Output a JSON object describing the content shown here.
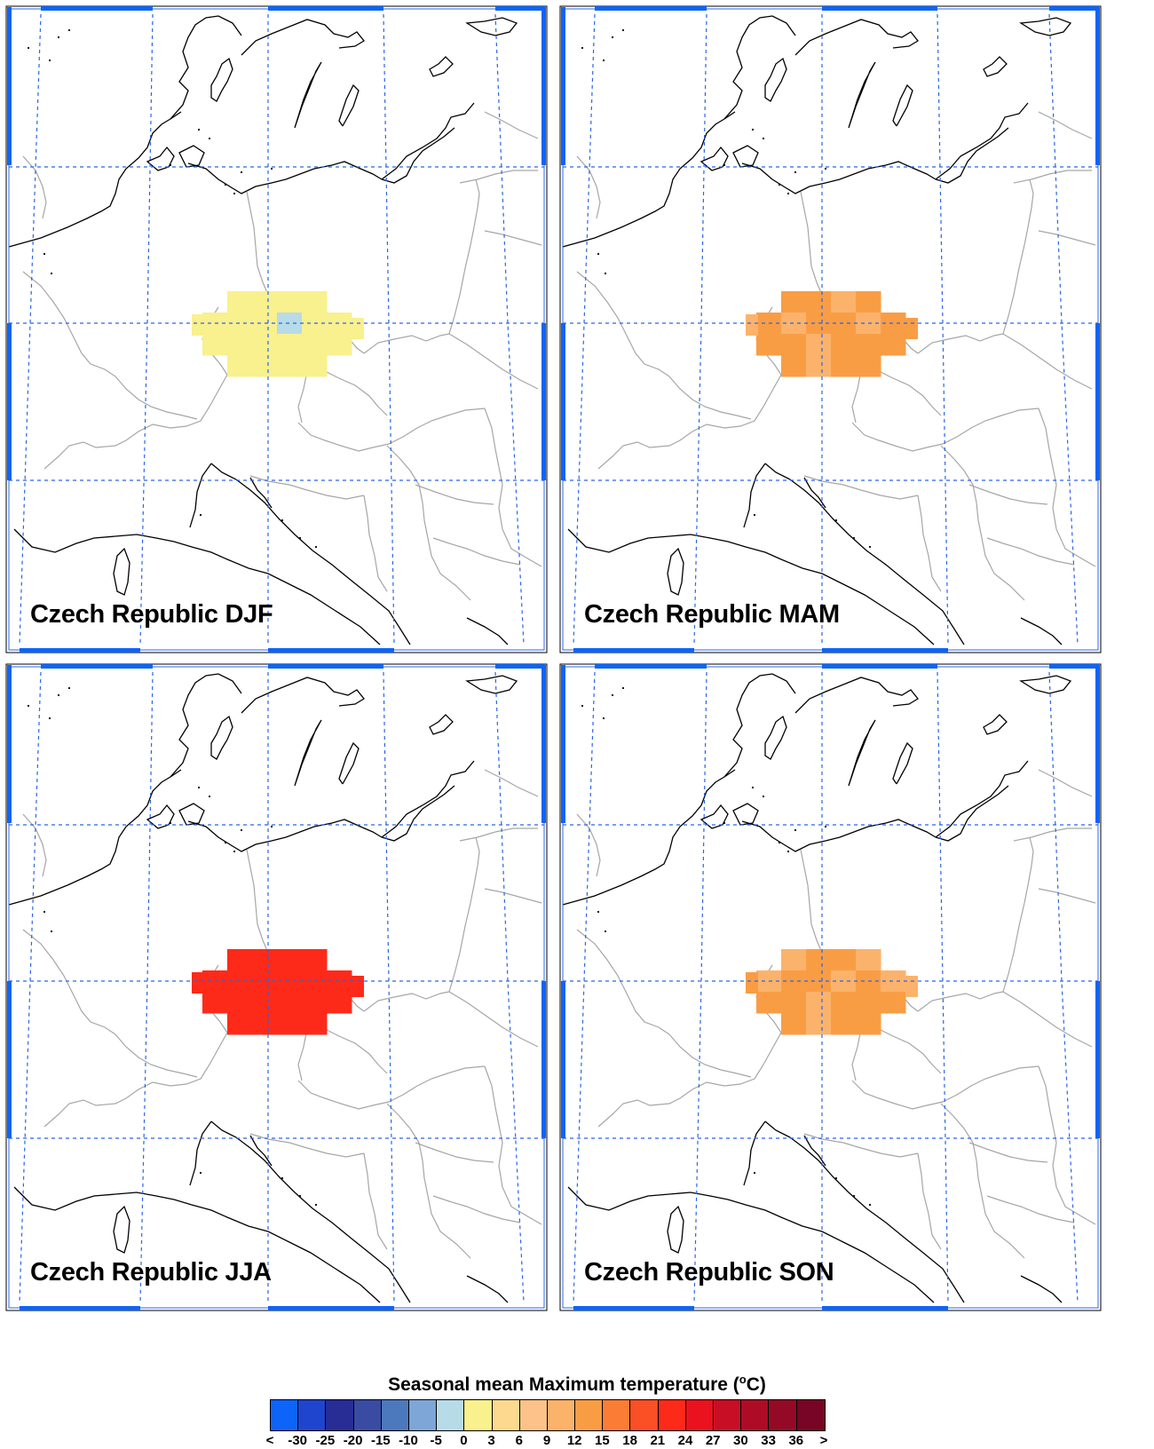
{
  "panels": [
    {
      "label": "Czech Republic DJF",
      "season": "DJF",
      "cells": [
        [
          "#f9f08e",
          "#f9f08e",
          "#f9f08e",
          "#f9f08e",
          "#f9f08e"
        ],
        [
          "#f9f08e",
          "#f9f08e",
          "#f9f08e",
          "#b7dbe7",
          "#f9f08e"
        ],
        [
          "#f9f08e",
          "#f9f08e",
          "#f9f08e",
          "#f9f08e",
          "#f9f08e"
        ]
      ]
    },
    {
      "label": "Czech Republic MAM",
      "season": "MAM",
      "cells": [
        [
          "#f99d45",
          "#f99d45",
          "#f99d45",
          "#fbb36b",
          "#f99d45"
        ],
        [
          "#f99d45",
          "#fbb36b",
          "#f99d45",
          "#f99d45",
          "#fbb36b"
        ],
        [
          "#f99d45",
          "#f99d45",
          "#fbb36b",
          "#f99d45",
          "#f99d45"
        ]
      ]
    },
    {
      "label": "Czech Republic JJA",
      "season": "JJA",
      "cells": [
        [
          "#fe2a19",
          "#fe2a19",
          "#fe2a19",
          "#fe2a19",
          "#fe2a19"
        ],
        [
          "#fe2a19",
          "#fe2a19",
          "#fe2a19",
          "#fe2a19",
          "#fe2a19"
        ],
        [
          "#fe2a19",
          "#fe2a19",
          "#fe2a19",
          "#fe2a19",
          "#fe2a19"
        ]
      ]
    },
    {
      "label": "Czech Republic SON",
      "season": "SON",
      "cells": [
        [
          "#f99d45",
          "#fbb36b",
          "#f99d45",
          "#f99d45",
          "#fbb36b"
        ],
        [
          "#fbb36b",
          "#f99d45",
          "#f99d45",
          "#fbb36b",
          "#f99d45"
        ],
        [
          "#f99d45",
          "#f99d45",
          "#fbb36b",
          "#f99d45",
          "#f99d45"
        ]
      ]
    }
  ],
  "legend": {
    "title_main": "Seasonal mean Maximum temperature (",
    "title_sup": "o",
    "title_end": "C)",
    "colors": [
      "#0d64f8",
      "#1f45cf",
      "#272d95",
      "#3a4ca2",
      "#4c79bd",
      "#7ea6d6",
      "#b7dbe7",
      "#f9f08e",
      "#fdd98f",
      "#fcc28a",
      "#fbb36b",
      "#f99d45",
      "#fb7d35",
      "#fb4f26",
      "#fe2a19",
      "#e9121e",
      "#c80e25",
      "#ae0c26",
      "#940a26",
      "#780426"
    ],
    "ticks": [
      "<",
      "-30",
      "-25",
      "-20",
      "-15",
      "-10",
      "-5",
      "0",
      "3",
      "6",
      "9",
      "12",
      "15",
      "18",
      "21",
      "24",
      "27",
      "30",
      "33",
      "36",
      ">"
    ]
  }
}
